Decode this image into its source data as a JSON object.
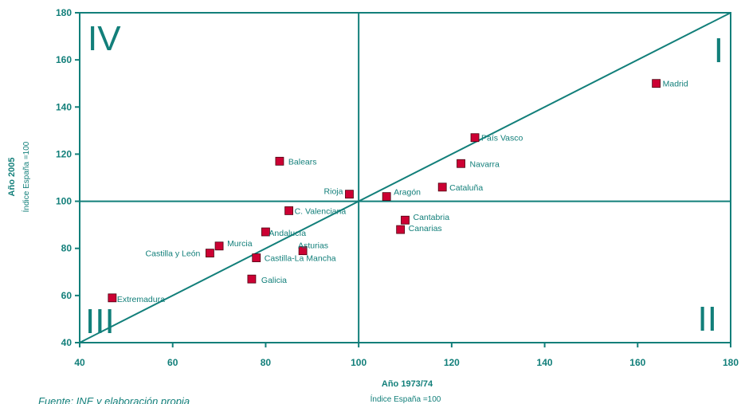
{
  "chart_data": {
    "type": "scatter",
    "title": "",
    "xlabel": "Año 1973/74",
    "xsublabel": "Índice España =100",
    "ylabel": "Año 2005",
    "ysublabel": "Índice España =100",
    "xlim": [
      40,
      180
    ],
    "ylim": [
      40,
      180
    ],
    "xticks": [
      "40",
      "60",
      "80",
      "100",
      "120",
      "140",
      "160",
      "180"
    ],
    "yticks": [
      "40",
      "60",
      "80",
      "100",
      "120",
      "140",
      "160",
      "180"
    ],
    "reference_x": 100,
    "reference_y": 100,
    "diagonal": [
      [
        40,
        40
      ],
      [
        180,
        180
      ]
    ],
    "quadrants": [
      "I",
      "II",
      "III",
      "IV"
    ],
    "points": [
      {
        "label": "Madrid",
        "x": 164,
        "y": 150
      },
      {
        "label": "País Vasco",
        "x": 125,
        "y": 127
      },
      {
        "label": "Navarra",
        "x": 122,
        "y": 116
      },
      {
        "label": "Cataluña",
        "x": 118,
        "y": 106
      },
      {
        "label": "Balears",
        "x": 83,
        "y": 117
      },
      {
        "label": "Rioja",
        "x": 98,
        "y": 103
      },
      {
        "label": "Aragón",
        "x": 106,
        "y": 102
      },
      {
        "label": "C. Valenciana",
        "x": 85,
        "y": 96
      },
      {
        "label": "Cantabria",
        "x": 110,
        "y": 92
      },
      {
        "label": "Canarias",
        "x": 109,
        "y": 88
      },
      {
        "label": "Andalucía",
        "x": 80,
        "y": 87
      },
      {
        "label": "Murcia",
        "x": 70,
        "y": 81
      },
      {
        "label": "Castilla y León",
        "x": 68,
        "y": 78
      },
      {
        "label": "Castilla-La Mancha",
        "x": 78,
        "y": 76
      },
      {
        "label": "Asturias",
        "x": 88,
        "y": 79
      },
      {
        "label": "Galicia",
        "x": 77,
        "y": 67
      },
      {
        "label": "Extremadura",
        "x": 47,
        "y": 59
      }
    ],
    "marker_color": "#cc0033",
    "line_color": "#127f7a",
    "grid": false
  },
  "source_note": "Fuente: INE y elaboración propia"
}
